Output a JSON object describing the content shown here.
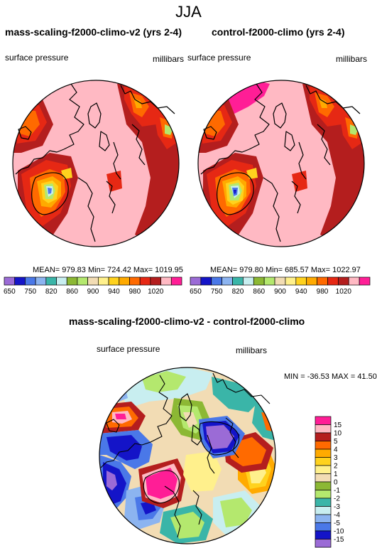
{
  "page_title": "JJA",
  "colors": {
    "c650": "#9b6bd6",
    "c700": "#1414c8",
    "c750": "#4a78e8",
    "c800": "#8cb4f0",
    "c820": "#3ab5a8",
    "c840": "#c8eef0",
    "c860": "#8cb834",
    "c880": "#b4e86e",
    "c900": "#f2dcb4",
    "c920": "#fff08c",
    "c940": "#ffd21e",
    "c960": "#ffaa00",
    "c980": "#ff6a00",
    "c1000": "#e62814",
    "c1010": "#b41e1e",
    "c1020": "#ffb9c3",
    "c1030": "#ff1e96",
    "d_m15": "#9b6bd6",
    "d_m10": "#1414c8",
    "d_m5": "#4a78e8",
    "d_m4": "#8cb4f0",
    "d_m3": "#c8eef0",
    "d_m2": "#3ab5a8",
    "d_m1": "#b4e86e",
    "d_0": "#8cb834",
    "d_1": "#f2dcb4",
    "d_2": "#fff08c",
    "d_3": "#ffd21e",
    "d_4": "#ffaa00",
    "d_5": "#ff6a00",
    "d_10": "#b41e1e",
    "d_15": "#ffb9c3",
    "d_over": "#ff1e96"
  },
  "panels": [
    {
      "title": "mass-scaling-f2000-climo-v2 (yrs 2-4)",
      "variable": "surface pressure",
      "units": "millibars",
      "stats": "MEAN= 979.83  Min= 724.42  Max= 1019.95"
    },
    {
      "title": "control-f2000-climo (yrs 2-4)",
      "variable": "surface pressure",
      "units": "millibars",
      "stats": "MEAN= 979.80  Min= 685.57  Max= 1022.97"
    }
  ],
  "top_colorbar_labels": [
    "650",
    "750",
    "820",
    "860",
    "900",
    "940",
    "980",
    "1020"
  ],
  "diff_panel": {
    "title": "mass-scaling-f2000-climo-v2 - control-f2000-climo",
    "variable": "surface pressure",
    "units": "millibars",
    "stats": "MIN = -36.53 MAX =  41.50",
    "colorbar_labels": [
      "15",
      "10",
      "5",
      "4",
      "3",
      "2",
      "1",
      "0",
      "-1",
      "-2",
      "-3",
      "-4",
      "-5",
      "-10",
      "-15"
    ]
  }
}
